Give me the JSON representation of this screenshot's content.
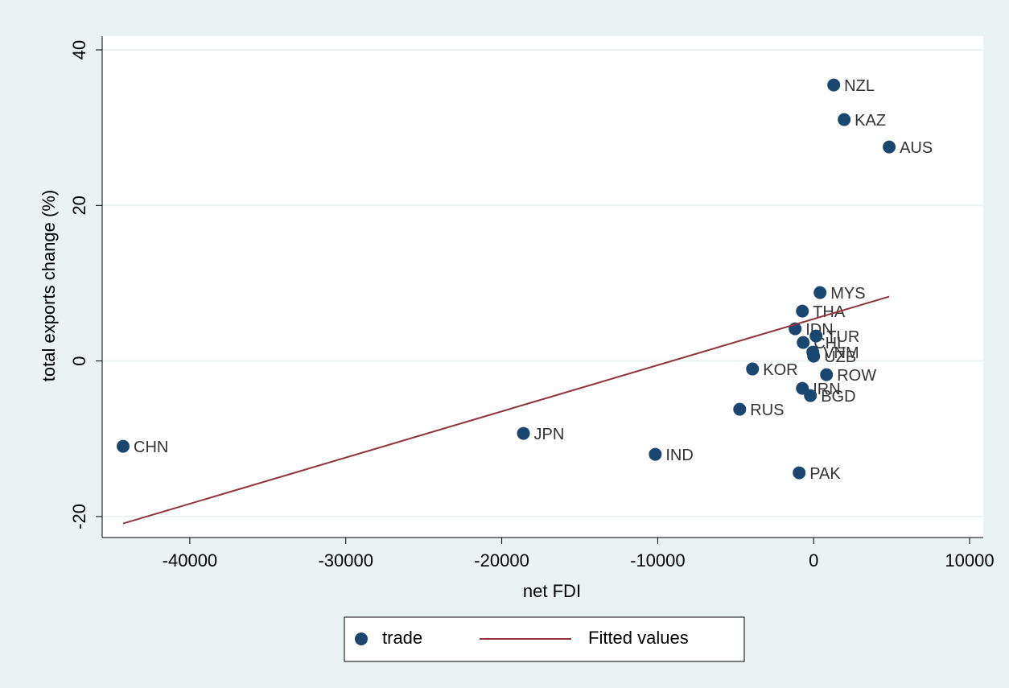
{
  "chart_data": {
    "type": "scatter",
    "x_label": "net FDI",
    "y_label": "total exports change (%)",
    "xlim": [
      -45620,
      10876
    ],
    "ylim": [
      -22.7,
      41.76
    ],
    "xticks": [
      -40000,
      -30000,
      -20000,
      -10000,
      0,
      10000
    ],
    "yticks": [
      -20,
      0,
      20,
      40
    ],
    "grid": true,
    "legend": "bottom",
    "series": [
      {
        "name": "trade",
        "type": "scatter",
        "color": "#1a476f",
        "labels": [
          "CHN",
          "JPN",
          "IND",
          "RUS",
          "KOR",
          "PAK",
          "IRN",
          "BGD",
          "ROW",
          "UZB",
          "VNM",
          "THA",
          "MYS",
          "IDN",
          "CHL",
          "TUR",
          "NZL",
          "KAZ",
          "AUS"
        ],
        "x": [
          -44278,
          -18608,
          -10155,
          -4742,
          -3918,
          -928,
          -722,
          -206,
          825,
          0,
          -52,
          -722,
          412,
          -1186,
          -670,
          155,
          1289,
          1959,
          4845
        ],
        "values": [
          -10.97,
          -9.31,
          -12.0,
          -6.21,
          -1.03,
          -14.38,
          -3.52,
          -4.45,
          -1.76,
          0.62,
          1.14,
          6.41,
          8.79,
          4.14,
          2.38,
          3.21,
          35.49,
          31.04,
          27.52
        ]
      },
      {
        "name": "Fitted values",
        "type": "line",
        "color": "#90353b",
        "x": [
          -44278,
          4845
        ],
        "values": [
          -20.9,
          8.28
        ]
      }
    ]
  }
}
